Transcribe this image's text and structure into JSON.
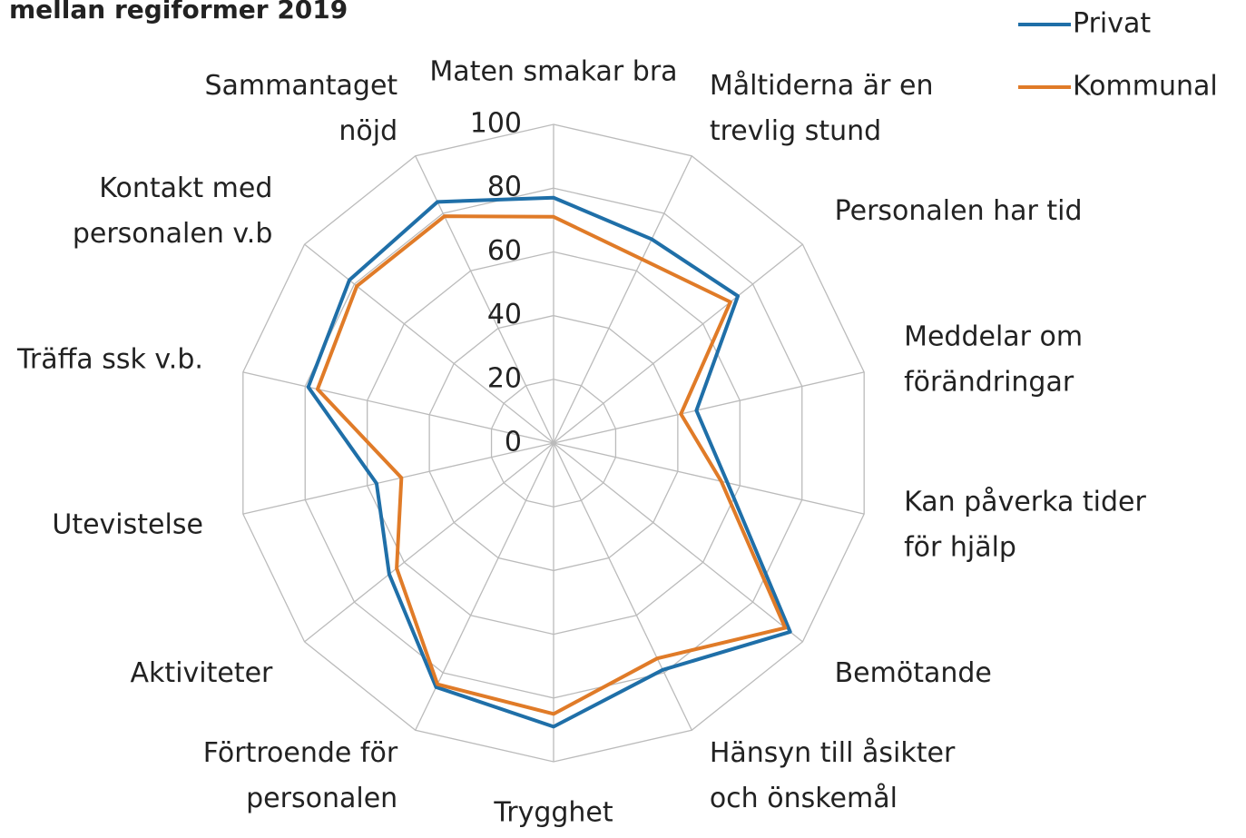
{
  "chart_data": {
    "type": "radar",
    "title": "mellan regiformer 2019",
    "categories": [
      [
        "Maten smakar bra"
      ],
      [
        "Måltiderna är en",
        "trevlig stund"
      ],
      [
        "Personalen har tid"
      ],
      [
        "Meddelar om",
        "förändringar"
      ],
      [
        "Kan påverka tider",
        "för hjälp"
      ],
      [
        "Bemötande"
      ],
      [
        "Hänsyn till åsikter",
        "och önskemål"
      ],
      [
        "Trygghet"
      ],
      [
        "Förtroende för",
        "personalen"
      ],
      [
        "Aktiviteter"
      ],
      [
        "Utevistelse"
      ],
      [
        "Träffa ssk v.b."
      ],
      [
        "Kontakt med",
        "personalen v.b"
      ],
      [
        "Sammantaget",
        "nöjd"
      ]
    ],
    "series": [
      {
        "name": "Privat",
        "color": "#1f6fa8",
        "values": [
          77,
          71,
          74,
          46,
          56,
          95,
          79,
          89,
          85,
          66,
          57,
          79,
          82,
          84
        ]
      },
      {
        "name": "Kommunal",
        "color": "#e07b28",
        "values": [
          71,
          64,
          71,
          41,
          54,
          93,
          75,
          85,
          84,
          63,
          49,
          76,
          79,
          79
        ]
      }
    ],
    "ylim": [
      0,
      100
    ],
    "yticks": [
      0,
      20,
      40,
      60,
      80,
      100
    ],
    "grid": true,
    "legend": "top-right"
  }
}
